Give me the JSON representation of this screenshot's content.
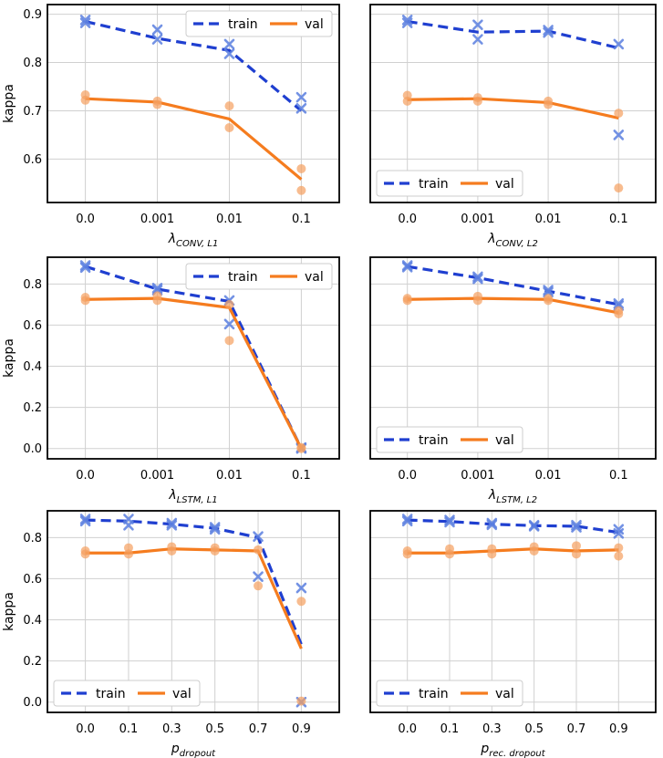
{
  "colors": {
    "train": "#1f3fd0",
    "val": "#f57c1f",
    "train_marker": "#5b7fe0",
    "val_marker": "#f5a060",
    "grid": "#d0d0d0",
    "frame": "#000000"
  },
  "chart_data": [
    {
      "type": "line",
      "id": "conv-l1",
      "ylabel": "kappa",
      "xlabel": "λ",
      "xlabel_sub": "CONV, L1",
      "categories": [
        "0.0",
        "0.001",
        "0.01",
        "0.1"
      ],
      "ylim": [
        0.51,
        0.92
      ],
      "yticks": [
        0.6,
        0.7,
        0.8,
        0.9
      ],
      "yticklabels": [
        "0.6",
        "0.7",
        "0.8",
        "0.9"
      ],
      "legend": {
        "position": "upper right",
        "train": "train",
        "val": "val"
      },
      "series": [
        {
          "name": "train",
          "style": "dashed",
          "marker": "x",
          "values": [
            0.885,
            0.85,
            0.825,
            0.7
          ],
          "points": [
            [
              0.888,
              0.882
            ],
            [
              0.868,
              0.848
            ],
            [
              0.838,
              0.818
            ],
            [
              0.728,
              0.705
            ]
          ]
        },
        {
          "name": "val",
          "style": "solid",
          "marker": "o",
          "values": [
            0.725,
            0.718,
            0.683,
            0.558
          ],
          "points": [
            [
              0.733,
              0.722
            ],
            [
              0.72,
              0.713
            ],
            [
              0.71,
              0.665
            ],
            [
              0.58,
              0.535
            ]
          ]
        }
      ]
    },
    {
      "type": "line",
      "id": "conv-l2",
      "ylabel": "",
      "xlabel": "λ",
      "xlabel_sub": "CONV, L2",
      "categories": [
        "0.0",
        "0.001",
        "0.01",
        "0.1"
      ],
      "ylim": [
        0.51,
        0.92
      ],
      "yticks": [],
      "yticklabels": [],
      "legend": {
        "position": "lower left",
        "train": "train",
        "val": "val"
      },
      "series": [
        {
          "name": "train",
          "style": "dashed",
          "marker": "x",
          "values": [
            0.885,
            0.863,
            0.865,
            0.83
          ],
          "points": [
            [
              0.888,
              0.882
            ],
            [
              0.878,
              0.848
            ],
            [
              0.867,
              0.862
            ],
            [
              0.838,
              0.65
            ]
          ]
        },
        {
          "name": "val",
          "style": "solid",
          "marker": "o",
          "values": [
            0.723,
            0.725,
            0.717,
            0.685
          ],
          "points": [
            [
              0.732,
              0.72
            ],
            [
              0.727,
              0.72
            ],
            [
              0.72,
              0.713
            ],
            [
              0.695,
              0.54
            ]
          ]
        }
      ]
    },
    {
      "type": "line",
      "id": "lstm-l1",
      "ylabel": "kappa",
      "xlabel": "λ",
      "xlabel_sub": "LSTM, L1",
      "categories": [
        "0.0",
        "0.001",
        "0.01",
        "0.1"
      ],
      "ylim": [
        -0.05,
        0.93
      ],
      "yticks": [
        0.0,
        0.2,
        0.4,
        0.6,
        0.8
      ],
      "yticklabels": [
        "0.0",
        "0.2",
        "0.4",
        "0.6",
        "0.8"
      ],
      "legend": {
        "position": "upper right",
        "train": "train",
        "val": "val"
      },
      "series": [
        {
          "name": "train",
          "style": "dashed",
          "marker": "x",
          "values": [
            0.885,
            0.775,
            0.715,
            0.0
          ],
          "points": [
            [
              0.89,
              0.88
            ],
            [
              0.78,
              0.77
            ],
            [
              0.72,
              0.605
            ],
            [
              0.005,
              0.0
            ]
          ]
        },
        {
          "name": "val",
          "style": "solid",
          "marker": "o",
          "values": [
            0.725,
            0.73,
            0.685,
            0.0
          ],
          "points": [
            [
              0.735,
              0.72
            ],
            [
              0.742,
              0.72
            ],
            [
              0.7,
              0.525
            ],
            [
              0.005,
              0.0
            ]
          ]
        }
      ]
    },
    {
      "type": "line",
      "id": "lstm-l2",
      "ylabel": "",
      "xlabel": "λ",
      "xlabel_sub": "LSTM, L2",
      "categories": [
        "0.0",
        "0.001",
        "0.01",
        "0.1"
      ],
      "ylim": [
        -0.05,
        0.93
      ],
      "yticks": [],
      "yticklabels": [],
      "legend": {
        "position": "lower left",
        "train": "train",
        "val": "val"
      },
      "series": [
        {
          "name": "train",
          "style": "dashed",
          "marker": "x",
          "values": [
            0.885,
            0.83,
            0.765,
            0.7
          ],
          "points": [
            [
              0.89,
              0.882
            ],
            [
              0.835,
              0.825
            ],
            [
              0.77,
              0.76
            ],
            [
              0.705,
              0.695
            ]
          ]
        },
        {
          "name": "val",
          "style": "solid",
          "marker": "o",
          "values": [
            0.725,
            0.73,
            0.725,
            0.66
          ],
          "points": [
            [
              0.73,
              0.72
            ],
            [
              0.74,
              0.72
            ],
            [
              0.73,
              0.72
            ],
            [
              0.67,
              0.655
            ]
          ]
        }
      ]
    },
    {
      "type": "line",
      "id": "dropout",
      "ylabel": "kappa",
      "xlabel": "p",
      "xlabel_sub": "dropout",
      "categories": [
        "0.0",
        "0.1",
        "0.3",
        "0.5",
        "0.7",
        "0.9"
      ],
      "ylim": [
        -0.05,
        0.93
      ],
      "yticks": [
        0.0,
        0.2,
        0.4,
        0.6,
        0.8
      ],
      "yticklabels": [
        "0.0",
        "0.2",
        "0.4",
        "0.6",
        "0.8"
      ],
      "legend": {
        "position": "lower left",
        "train": "train",
        "val": "val"
      },
      "series": [
        {
          "name": "train",
          "style": "dashed",
          "marker": "x",
          "values": [
            0.885,
            0.88,
            0.865,
            0.845,
            0.8,
            0.28
          ],
          "points": [
            [
              0.89,
              0.88
            ],
            [
              0.89,
              0.86
            ],
            [
              0.87,
              0.86
            ],
            [
              0.85,
              0.84
            ],
            [
              0.805,
              0.61
            ],
            [
              0.555,
              0.0
            ]
          ]
        },
        {
          "name": "val",
          "style": "solid",
          "marker": "o",
          "values": [
            0.725,
            0.725,
            0.745,
            0.74,
            0.735,
            0.26
          ],
          "points": [
            [
              0.735,
              0.72
            ],
            [
              0.75,
              0.72
            ],
            [
              0.755,
              0.735
            ],
            [
              0.75,
              0.735
            ],
            [
              0.74,
              0.565
            ],
            [
              0.49,
              0.005
            ]
          ]
        }
      ]
    },
    {
      "type": "line",
      "id": "rec-dropout",
      "ylabel": "",
      "xlabel": "p",
      "xlabel_sub": "rec. dropout",
      "categories": [
        "0.0",
        "0.1",
        "0.3",
        "0.5",
        "0.7",
        "0.9"
      ],
      "ylim": [
        -0.05,
        0.93
      ],
      "yticks": [],
      "yticklabels": [],
      "legend": {
        "position": "lower left",
        "train": "train",
        "val": "val"
      },
      "series": [
        {
          "name": "train",
          "style": "dashed",
          "marker": "x",
          "values": [
            0.885,
            0.878,
            0.865,
            0.858,
            0.855,
            0.825
          ],
          "points": [
            [
              0.89,
              0.88
            ],
            [
              0.885,
              0.875
            ],
            [
              0.87,
              0.862
            ],
            [
              0.86,
              0.855
            ],
            [
              0.86,
              0.85
            ],
            [
              0.84,
              0.82
            ]
          ]
        },
        {
          "name": "val",
          "style": "solid",
          "marker": "o",
          "values": [
            0.725,
            0.725,
            0.735,
            0.745,
            0.735,
            0.74
          ],
          "points": [
            [
              0.735,
              0.72
            ],
            [
              0.745,
              0.72
            ],
            [
              0.745,
              0.72
            ],
            [
              0.755,
              0.735
            ],
            [
              0.76,
              0.72
            ],
            [
              0.75,
              0.71
            ]
          ]
        }
      ]
    }
  ]
}
